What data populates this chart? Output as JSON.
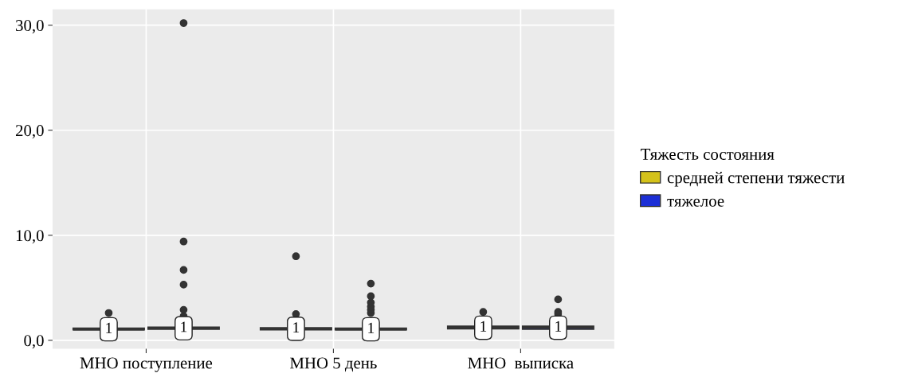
{
  "chart_data": {
    "type": "box",
    "categories": [
      "МНО поступление",
      "МНО 5 день",
      "МНО  выписка"
    ],
    "legend_title": "Тяжесть состояния",
    "legend": "right",
    "grid": true,
    "ylim": [
      -0.8,
      31.5
    ],
    "yticks": [
      {
        "value": 0,
        "label": "0,0"
      },
      {
        "value": 10,
        "label": "10,0"
      },
      {
        "value": 20,
        "label": "20,0"
      },
      {
        "value": 30,
        "label": "30,0"
      }
    ],
    "series": [
      {
        "name": "средней степени тяжести",
        "color": "#d4c21a",
        "value_labels": [
          "1",
          "1",
          "1"
        ],
        "boxes": [
          {
            "q1": 1.0,
            "median": 1.05,
            "q3": 1.15,
            "outliers": [
              2.6
            ]
          },
          {
            "q1": 1.0,
            "median": 1.1,
            "q3": 1.2,
            "outliers": [
              2.5,
              8.0
            ]
          },
          {
            "q1": 1.1,
            "median": 1.2,
            "q3": 1.35,
            "outliers": [
              2.7
            ]
          }
        ]
      },
      {
        "name": "тяжелое",
        "color": "#1c2fd6",
        "value_labels": [
          "1",
          "1",
          "1"
        ],
        "boxes": [
          {
            "q1": 1.05,
            "median": 1.15,
            "q3": 1.25,
            "outliers": [
              2.3,
              2.9,
              5.3,
              6.7,
              9.4,
              30.2
            ]
          },
          {
            "q1": 1.0,
            "median": 1.05,
            "q3": 1.15,
            "outliers": [
              2.6,
              2.9,
              3.2,
              3.6,
              4.2,
              5.4
            ]
          },
          {
            "q1": 1.05,
            "median": 1.2,
            "q3": 1.35,
            "outliers": [
              2.5,
              2.7,
              3.9
            ]
          }
        ]
      }
    ]
  }
}
